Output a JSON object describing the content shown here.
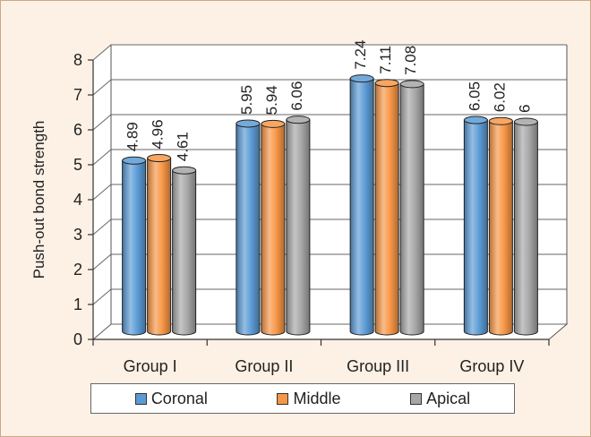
{
  "chart_data": {
    "type": "bar",
    "title": "",
    "xlabel": "",
    "ylabel": "Push-out bond strength",
    "ylim": [
      0,
      8
    ],
    "yticks": [
      0,
      1,
      2,
      3,
      4,
      5,
      6,
      7,
      8
    ],
    "grid": true,
    "legend_position": "bottom",
    "categories": [
      "Group I",
      "Group II",
      "Group III",
      "Group IV"
    ],
    "series": [
      {
        "name": "Coronal",
        "values": [
          4.89,
          5.95,
          7.24,
          6.05
        ],
        "labels": [
          "4.89",
          "5.95",
          "7.24",
          "6.05"
        ],
        "color": "#5b9bd5"
      },
      {
        "name": "Middle",
        "values": [
          4.96,
          5.94,
          7.11,
          6.02
        ],
        "labels": [
          "4.96",
          "5.94",
          "7.11",
          "6.02"
        ],
        "color": "#f79646"
      },
      {
        "name": "Apical",
        "values": [
          4.61,
          6.06,
          7.08,
          6.0
        ],
        "labels": [
          "4.61",
          "6.06",
          "7.08",
          "6"
        ],
        "color": "#a6a6a6"
      }
    ]
  }
}
